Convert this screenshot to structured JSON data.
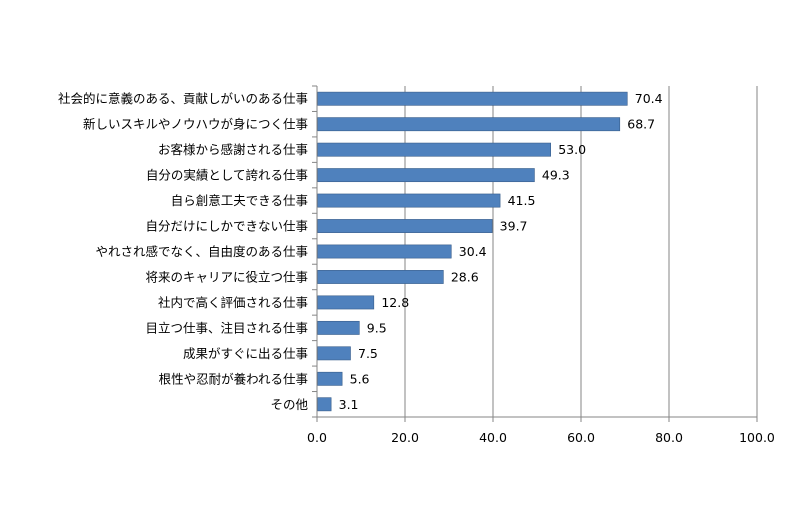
{
  "chart_data": {
    "type": "bar",
    "orientation": "horizontal",
    "categories": [
      "社会的に意義のある、貢献しがいのある仕事",
      "新しいスキルやノウハウが身につく仕事",
      "お客様から感謝される仕事",
      "自分の実績として誇れる仕事",
      "自ら創意工夫できる仕事",
      "自分だけにしかできない仕事",
      "やれされ感でなく、自由度のある仕事",
      "将来のキャリアに役立つ仕事",
      "社内で高く評価される仕事",
      "目立つ仕事、注目される仕事",
      "成果がすぐに出る仕事",
      "根性や忍耐が養われる仕事",
      "その他"
    ],
    "values": [
      70.4,
      68.7,
      53.0,
      49.3,
      41.5,
      39.7,
      30.4,
      28.6,
      12.8,
      9.5,
      7.5,
      5.6,
      3.1
    ],
    "value_labels": [
      "70.4",
      "68.7",
      "53.0",
      "49.3",
      "41.5",
      "39.7",
      "30.4",
      "28.6",
      "12.8",
      "9.5",
      "7.5",
      "5.6",
      "3.1"
    ],
    "x_ticks": [
      "0.0",
      "20.0",
      "40.0",
      "60.0",
      "80.0",
      "100.0"
    ],
    "xlim": [
      0,
      100
    ],
    "grid": true,
    "bar_color": "#4f81bd",
    "bar_border_color": "#385d8a",
    "grid_color": "#868686",
    "title": "",
    "xlabel": "",
    "ylabel": ""
  }
}
